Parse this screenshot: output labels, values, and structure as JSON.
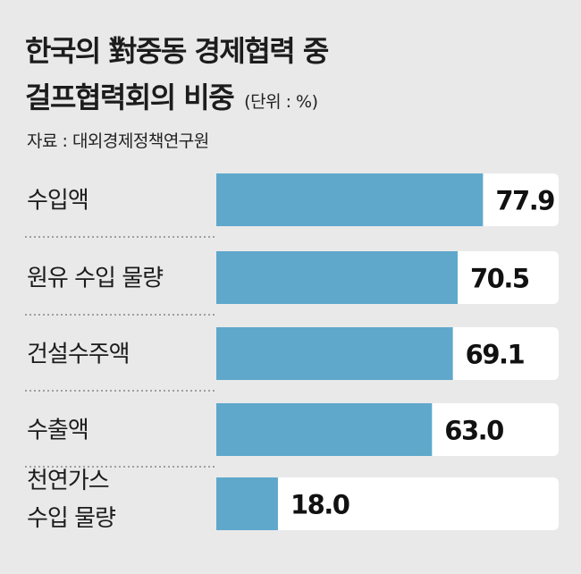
{
  "header": {
    "title_line1": "한국의 對중동 경제협력 중",
    "title_line2": "걸프협력회의 비중",
    "unit": "(단위 : %)",
    "source": "자료 : 대외경제정책연구원"
  },
  "colors": {
    "bar": "#5fa8cc",
    "track": "#ffffff",
    "background": "#e9e9e9"
  },
  "chart_data": {
    "type": "bar",
    "orientation": "horizontal",
    "title": "한국의 對중동 경제협력 중 걸프협력회의 비중",
    "unit": "%",
    "categories": [
      [
        "수입액"
      ],
      [
        "원유 수입 물량"
      ],
      [
        "건설수주액"
      ],
      [
        "수출액"
      ],
      [
        "천연가스",
        "수입 물량"
      ]
    ],
    "values": [
      77.9,
      70.5,
      69.1,
      63.0,
      18.0
    ],
    "value_labels": [
      "77.9",
      "70.5",
      "69.1",
      "63.0",
      "18.0"
    ],
    "xlim": [
      0,
      100
    ],
    "grid": false,
    "legend": "none"
  }
}
